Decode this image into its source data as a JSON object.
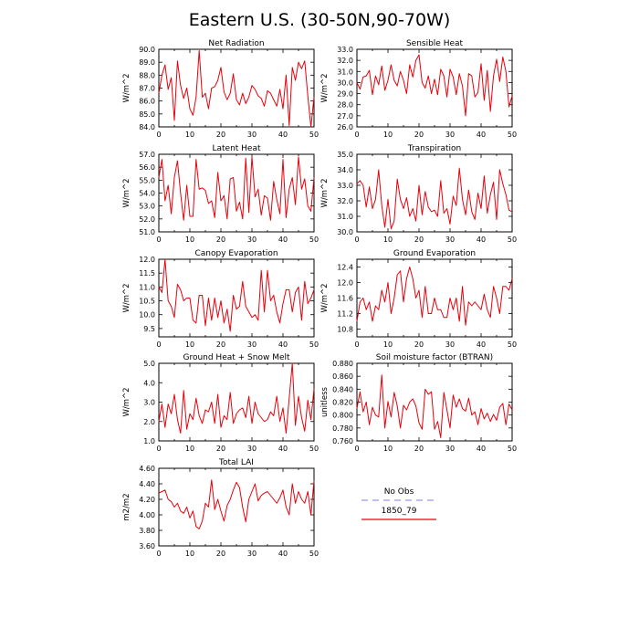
{
  "page": {
    "title": "Eastern U.S. (30-50N,90-70W)"
  },
  "legend": {
    "entries": [
      {
        "label": "No Obs",
        "color": "#a8a8f0",
        "dashed": true
      },
      {
        "label": "1850_79",
        "color": "#e8000b",
        "dashed": false
      }
    ]
  },
  "chart_data": [
    {
      "type": "line",
      "title": "Net Radiation",
      "ylabel": "W/m^2",
      "xlim": [
        0,
        50
      ],
      "ylim": [
        84.0,
        90.0
      ],
      "xticks": [
        0,
        10,
        20,
        30,
        40,
        50
      ],
      "yticks": [
        84.0,
        85.0,
        86.0,
        87.0,
        88.0,
        89.0,
        90.0
      ],
      "ytick_labels": [
        "84.0",
        "85.0",
        "86.0",
        "87.0",
        "88.0",
        "89.0",
        "90.0"
      ],
      "series": [
        {
          "color": "#e8000b",
          "x_start": 0,
          "values": [
            86.6,
            88.0,
            88.8,
            86.9,
            87.8,
            84.5,
            89.1,
            87.2,
            86.2,
            87.0,
            85.4,
            84.9,
            86.3,
            89.9,
            86.3,
            86.6,
            85.4,
            87.0,
            87.1,
            87.6,
            88.6,
            86.7,
            86.1,
            86.6,
            88.1,
            86.1,
            85.7,
            86.6,
            85.8,
            86.3,
            87.2,
            86.9,
            86.4,
            86.2,
            85.6,
            86.8,
            86.6,
            86.1,
            85.6,
            86.9,
            85.4,
            88.0,
            84.1,
            88.6,
            87.6,
            89.0,
            88.5,
            89.1,
            86.4,
            84.0,
            86.3
          ]
        }
      ]
    },
    {
      "type": "line",
      "title": "Sensible Heat",
      "ylabel": "W/m^2",
      "xlim": [
        0,
        50
      ],
      "ylim": [
        26.0,
        33.0
      ],
      "xticks": [
        0,
        10,
        20,
        30,
        40,
        50
      ],
      "yticks": [
        26.0,
        27.0,
        28.0,
        29.0,
        30.0,
        31.0,
        32.0,
        33.0
      ],
      "ytick_labels": [
        "26.0",
        "27.0",
        "28.0",
        "29.0",
        "30.0",
        "31.0",
        "32.0",
        "33.0"
      ],
      "series": [
        {
          "color": "#e8000b",
          "x_start": 0,
          "values": [
            30.0,
            29.4,
            30.5,
            30.6,
            31.1,
            28.9,
            30.6,
            29.8,
            31.5,
            29.3,
            30.2,
            31.6,
            30.2,
            29.7,
            31.0,
            30.2,
            29.0,
            31.6,
            30.5,
            32.0,
            32.5,
            30.0,
            29.5,
            30.6,
            29.0,
            30.3,
            28.9,
            31.2,
            30.6,
            28.7,
            31.2,
            30.5,
            28.9,
            30.8,
            29.7,
            27.0,
            30.8,
            30.6,
            28.7,
            29.1,
            31.7,
            28.4,
            31.1,
            27.4,
            30.6,
            32.1,
            30.1,
            32.3,
            31.0,
            27.8,
            28.8
          ]
        }
      ]
    },
    {
      "type": "line",
      "title": "Latent Heat",
      "ylabel": "W/m^2",
      "xlim": [
        0,
        50
      ],
      "ylim": [
        51.0,
        57.0
      ],
      "xticks": [
        0,
        10,
        20,
        30,
        40,
        50
      ],
      "yticks": [
        51.0,
        52.0,
        53.0,
        54.0,
        55.0,
        56.0,
        57.0
      ],
      "ytick_labels": [
        "51.0",
        "52.0",
        "53.0",
        "54.0",
        "55.0",
        "56.0",
        "57.0"
      ],
      "series": [
        {
          "color": "#e8000b",
          "x_start": 0,
          "values": [
            55.2,
            56.6,
            53.4,
            54.6,
            52.4,
            55.2,
            56.5,
            54.0,
            51.9,
            54.6,
            52.2,
            52.2,
            56.6,
            54.3,
            54.4,
            54.2,
            53.2,
            53.4,
            52.1,
            55.6,
            53.4,
            53.8,
            52.0,
            55.1,
            55.2,
            52.6,
            53.3,
            52.0,
            56.7,
            52.5,
            56.8,
            53.7,
            54.3,
            52.3,
            53.8,
            53.6,
            51.9,
            54.9,
            53.5,
            52.4,
            56.6,
            52.1,
            54.3,
            55.2,
            53.1,
            56.8,
            54.3,
            55.1,
            53.0,
            52.6,
            55.2
          ]
        }
      ]
    },
    {
      "type": "line",
      "title": "Transpiration",
      "ylabel": "W/m^2",
      "xlim": [
        0,
        50
      ],
      "ylim": [
        30.0,
        35.0
      ],
      "xticks": [
        0,
        10,
        20,
        30,
        40,
        50
      ],
      "yticks": [
        30.0,
        31.0,
        32.0,
        33.0,
        34.0,
        35.0
      ],
      "ytick_labels": [
        "30.0",
        "31.0",
        "32.0",
        "33.0",
        "34.0",
        "35.0"
      ],
      "series": [
        {
          "color": "#e8000b",
          "x_start": 0,
          "values": [
            33.1,
            33.3,
            33.0,
            31.6,
            32.9,
            31.5,
            32.1,
            34.0,
            31.7,
            30.3,
            32.1,
            30.2,
            30.7,
            33.4,
            32.1,
            31.5,
            32.2,
            31.0,
            31.5,
            30.7,
            33.0,
            31.1,
            32.6,
            31.6,
            31.3,
            31.4,
            31.0,
            33.3,
            31.2,
            31.5,
            30.5,
            32.3,
            31.7,
            34.1,
            32.1,
            31.1,
            32.7,
            31.3,
            30.8,
            32.5,
            31.5,
            33.6,
            31.2,
            32.4,
            33.2,
            30.8,
            34.0,
            33.1,
            32.4,
            31.4,
            31.3
          ]
        }
      ]
    },
    {
      "type": "line",
      "title": "Canopy Evaporation",
      "ylabel": "W/m^2",
      "xlim": [
        0,
        50
      ],
      "ylim": [
        9.2,
        12.0
      ],
      "xticks": [
        0,
        10,
        20,
        30,
        40,
        50
      ],
      "yticks": [
        9.5,
        10.0,
        10.5,
        11.0,
        11.5,
        12.0
      ],
      "ytick_labels": [
        "9.5",
        "10.0",
        "10.5",
        "11.0",
        "11.5",
        "12.0"
      ],
      "series": [
        {
          "color": "#e8000b",
          "x_start": 0,
          "values": [
            11.0,
            10.8,
            12.0,
            10.5,
            10.3,
            9.9,
            11.1,
            10.9,
            10.5,
            10.6,
            10.6,
            9.8,
            9.7,
            10.7,
            10.7,
            9.6,
            10.6,
            9.8,
            10.6,
            9.9,
            10.5,
            9.7,
            10.2,
            9.4,
            10.7,
            10.2,
            10.3,
            11.2,
            10.3,
            10.1,
            9.9,
            10.0,
            9.8,
            11.6,
            10.1,
            11.6,
            10.5,
            10.7,
            10.1,
            9.7,
            10.4,
            10.9,
            10.9,
            10.1,
            10.8,
            11.0,
            9.8,
            11.2,
            10.4,
            10.6,
            10.9
          ]
        }
      ]
    },
    {
      "type": "line",
      "title": "Ground Evaporation",
      "ylabel": "W/m^2",
      "xlim": [
        0,
        50
      ],
      "ylim": [
        10.6,
        12.6
      ],
      "xticks": [
        0,
        10,
        20,
        30,
        40,
        50
      ],
      "yticks": [
        10.8,
        11.2,
        11.6,
        12.0,
        12.4
      ],
      "ytick_labels": [
        "10.8",
        "11.2",
        "11.6",
        "12.0",
        "12.4"
      ],
      "series": [
        {
          "color": "#e8000b",
          "x_start": 0,
          "values": [
            11.0,
            11.5,
            11.6,
            11.3,
            11.5,
            11.0,
            11.4,
            11.3,
            11.8,
            11.5,
            12.0,
            11.2,
            11.6,
            12.2,
            12.3,
            11.5,
            12.1,
            12.4,
            12.1,
            11.6,
            11.8,
            11.1,
            11.9,
            11.2,
            11.2,
            11.6,
            11.3,
            11.3,
            11.1,
            11.1,
            11.6,
            11.3,
            11.6,
            11.0,
            11.9,
            10.9,
            11.5,
            11.4,
            11.5,
            11.4,
            11.3,
            11.7,
            11.3,
            11.1,
            11.9,
            11.6,
            11.2,
            11.9,
            11.9,
            11.8,
            12.1
          ]
        }
      ]
    },
    {
      "type": "line",
      "title": "Ground Heat + Snow Melt",
      "ylabel": "W/m^2",
      "xlim": [
        0,
        50
      ],
      "ylim": [
        1.0,
        5.0
      ],
      "xticks": [
        0,
        10,
        20,
        30,
        40,
        50
      ],
      "yticks": [
        1.0,
        2.0,
        3.0,
        4.0,
        5.0
      ],
      "ytick_labels": [
        "1.0",
        "2.0",
        "3.0",
        "4.0",
        "5.0"
      ],
      "series": [
        {
          "color": "#e8000b",
          "x_start": 0,
          "values": [
            2.0,
            2.9,
            1.7,
            2.9,
            2.4,
            3.4,
            2.1,
            1.4,
            3.6,
            1.6,
            2.4,
            2.1,
            3.2,
            2.3,
            1.9,
            2.6,
            2.5,
            3.0,
            1.9,
            3.4,
            1.7,
            2.3,
            2.1,
            3.5,
            1.9,
            2.4,
            2.6,
            2.7,
            2.2,
            3.3,
            1.9,
            3.0,
            2.4,
            2.2,
            2.0,
            2.1,
            2.5,
            2.3,
            3.3,
            2.0,
            2.7,
            1.4,
            3.2,
            5.0,
            1.8,
            3.3,
            2.2,
            1.5,
            3.1,
            2.1,
            3.7
          ]
        }
      ]
    },
    {
      "type": "line",
      "title": "Soil moisture factor (BTRAN)",
      "ylabel": "unitless",
      "xlim": [
        0,
        50
      ],
      "ylim": [
        0.76,
        0.88
      ],
      "xticks": [
        0,
        10,
        20,
        30,
        40,
        50
      ],
      "yticks": [
        0.76,
        0.78,
        0.8,
        0.82,
        0.84,
        0.86,
        0.88
      ],
      "ytick_labels": [
        "0.760",
        "0.780",
        "0.800",
        "0.820",
        "0.840",
        "0.860",
        "0.880"
      ],
      "series": [
        {
          "color": "#e8000b",
          "x_start": 0,
          "values": [
            0.81,
            0.836,
            0.805,
            0.82,
            0.785,
            0.812,
            0.8,
            0.797,
            0.862,
            0.78,
            0.821,
            0.797,
            0.835,
            0.814,
            0.78,
            0.815,
            0.808,
            0.82,
            0.825,
            0.814,
            0.788,
            0.778,
            0.84,
            0.832,
            0.836,
            0.778,
            0.79,
            0.765,
            0.835,
            0.808,
            0.78,
            0.831,
            0.812,
            0.825,
            0.81,
            0.806,
            0.826,
            0.8,
            0.805,
            0.785,
            0.81,
            0.794,
            0.803,
            0.79,
            0.801,
            0.792,
            0.812,
            0.818,
            0.785,
            0.817,
            0.808
          ]
        }
      ]
    },
    {
      "type": "line",
      "title": "Total LAI",
      "ylabel": "m2/m2",
      "xlim": [
        0,
        50
      ],
      "ylim": [
        3.6,
        4.6
      ],
      "xticks": [
        0,
        10,
        20,
        30,
        40,
        50
      ],
      "yticks": [
        3.6,
        3.8,
        4.0,
        4.2,
        4.4,
        4.6
      ],
      "ytick_labels": [
        "3.60",
        "3.80",
        "4.00",
        "4.20",
        "4.40",
        "4.60"
      ],
      "series": [
        {
          "color": "#e8000b",
          "x_start": 0,
          "values": [
            4.28,
            4.3,
            4.32,
            4.2,
            4.17,
            4.1,
            4.15,
            4.05,
            4.02,
            4.1,
            3.96,
            4.05,
            3.85,
            3.82,
            3.92,
            4.15,
            4.1,
            4.45,
            4.07,
            4.2,
            4.05,
            3.92,
            4.12,
            4.2,
            4.32,
            4.42,
            4.35,
            4.1,
            3.91,
            4.2,
            4.3,
            4.4,
            4.18,
            4.25,
            4.28,
            4.3,
            4.25,
            4.2,
            4.15,
            4.22,
            4.32,
            4.1,
            4.0,
            4.4,
            4.15,
            4.3,
            4.2,
            4.15,
            4.3,
            4.0,
            4.44
          ]
        }
      ]
    }
  ]
}
